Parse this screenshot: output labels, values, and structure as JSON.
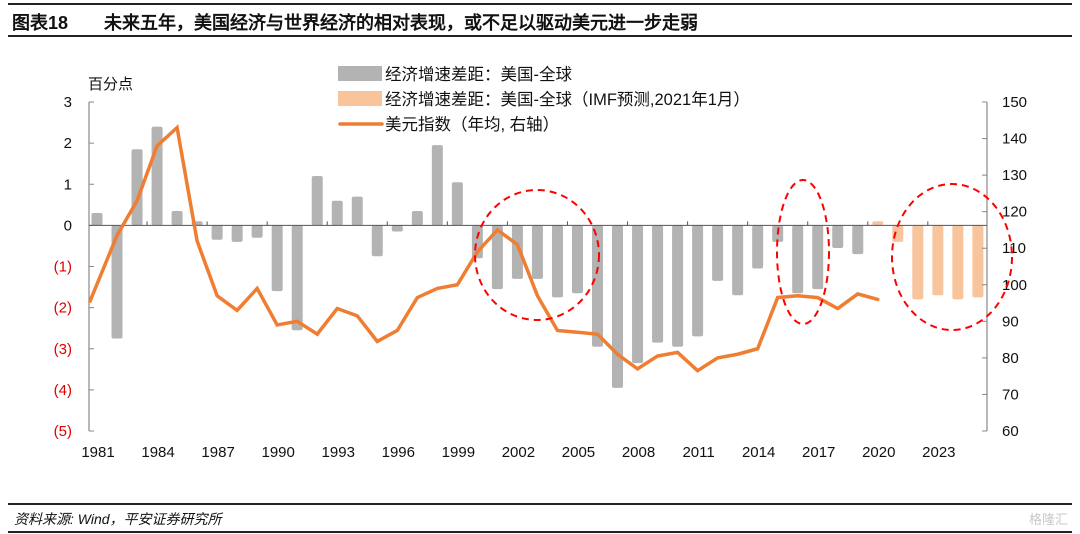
{
  "header": {
    "figure_number": "图表18",
    "title": "未来五年，美国经济与世界经济的相对表现，或不足以驱动美元进一步走弱"
  },
  "footer": {
    "source": "资料来源: Wind，平安证券研究所",
    "watermark": "格隆汇"
  },
  "chart_data": {
    "type": "bar",
    "title": "未来五年，美国经济与世界经济的相对表现，或不足以驱动美元进一步走弱",
    "ylabel": "百分点",
    "ylabel_right": "",
    "xlabel": "",
    "ylim": [
      -5,
      3
    ],
    "ylim_right": [
      60,
      150
    ],
    "yticks_left": [
      3,
      2,
      1,
      0,
      -1,
      -2,
      -3,
      -4,
      -5
    ],
    "yticks_left_labels": [
      "3",
      "2",
      "1",
      "0",
      "(1)",
      "(2)",
      "(3)",
      "(4)",
      "(5)"
    ],
    "yticks_right": [
      150,
      140,
      130,
      120,
      110,
      100,
      90,
      80,
      70,
      60
    ],
    "xtick_labels": [
      "1981",
      "1984",
      "1987",
      "1990",
      "1993",
      "1996",
      "1999",
      "2002",
      "2005",
      "2008",
      "2011",
      "2014",
      "2017",
      "2020",
      "2023"
    ],
    "legend_position": "top-center",
    "colors": {
      "actual": "#b3b3b3",
      "forecast": "#f8c49c",
      "dollar": "#ef7d32",
      "highlight": "#ff0000",
      "negative_tick": "#e00000"
    },
    "x": [
      1981,
      1982,
      1983,
      1984,
      1985,
      1986,
      1987,
      1988,
      1989,
      1990,
      1991,
      1992,
      1993,
      1994,
      1995,
      1996,
      1997,
      1998,
      1999,
      2000,
      2001,
      2002,
      2003,
      2004,
      2005,
      2006,
      2007,
      2008,
      2009,
      2010,
      2011,
      2012,
      2013,
      2014,
      2015,
      2016,
      2017,
      2018,
      2019,
      2020,
      2021,
      2022,
      2023,
      2024,
      2025
    ],
    "series": [
      {
        "name": "经济增速差距：美国-全球",
        "type": "bar",
        "axis": "left",
        "years": [
          1981,
          1982,
          1983,
          1984,
          1985,
          1986,
          1987,
          1988,
          1989,
          1990,
          1991,
          1992,
          1993,
          1994,
          1995,
          1996,
          1997,
          1998,
          1999,
          2000,
          2001,
          2002,
          2003,
          2004,
          2005,
          2006,
          2007,
          2008,
          2009,
          2010,
          2011,
          2012,
          2013,
          2014,
          2015,
          2016,
          2017,
          2018,
          2019
        ],
        "values": [
          0.3,
          -2.75,
          1.85,
          2.4,
          0.35,
          0.1,
          -0.35,
          -0.4,
          -0.3,
          -1.6,
          -2.55,
          1.2,
          0.6,
          0.7,
          -0.75,
          -0.15,
          0.35,
          1.95,
          1.05,
          -0.8,
          -1.55,
          -1.3,
          -1.3,
          -1.75,
          -1.65,
          -2.95,
          -3.95,
          -3.35,
          -2.85,
          -2.95,
          -2.7,
          -1.35,
          -1.7,
          -1.05,
          -0.4,
          -1.65,
          -1.55,
          -0.55,
          -0.7
        ]
      },
      {
        "name": "经济增速差距：美国-全球（IMF预测,2021年1月）",
        "type": "bar",
        "axis": "left",
        "years": [
          2020,
          2021,
          2022,
          2023,
          2024,
          2025
        ],
        "values": [
          0.1,
          -0.4,
          -1.8,
          -1.7,
          -1.8,
          -1.75
        ]
      },
      {
        "name": "美元指数（年均, 右轴）",
        "type": "line",
        "axis": "right",
        "years": [
          1981,
          1982,
          1983,
          1984,
          1985,
          1986,
          1987,
          1988,
          1989,
          1990,
          1991,
          1992,
          1993,
          1994,
          1995,
          1996,
          1997,
          1998,
          1999,
          2000,
          2001,
          2002,
          2003,
          2004,
          2005,
          2006,
          2007,
          2008,
          2009,
          2010,
          2011,
          2012,
          2013,
          2014,
          2015,
          2016,
          2017,
          2018,
          2019,
          2020
        ],
        "values": [
          95.5,
          113.5,
          123,
          138,
          143,
          112,
          97,
          93,
          99,
          89,
          90,
          86.5,
          93.5,
          91.5,
          84.5,
          87.5,
          96.5,
          99,
          100,
          109,
          115,
          111,
          97,
          87.5,
          87,
          86.5,
          81,
          77,
          80.5,
          81.5,
          76.5,
          80,
          81,
          82.5,
          96.5,
          97,
          96.5,
          93.5,
          97.5,
          96
        ]
      }
    ],
    "annotations": [
      {
        "type": "dashed-ellipse",
        "label": "circle-2002-2005"
      },
      {
        "type": "dashed-ellipse",
        "label": "circle-2016-2017"
      },
      {
        "type": "dashed-ellipse",
        "label": "circle-2021-2025"
      }
    ]
  },
  "legend": {
    "items": [
      {
        "label": "经济增速差距：美国-全球",
        "kind": "bar-actual"
      },
      {
        "label": "经济增速差距：美国-全球（IMF预测,2021年1月）",
        "kind": "bar-forecast"
      },
      {
        "label": "美元指数（年均, 右轴）",
        "kind": "line"
      }
    ]
  }
}
